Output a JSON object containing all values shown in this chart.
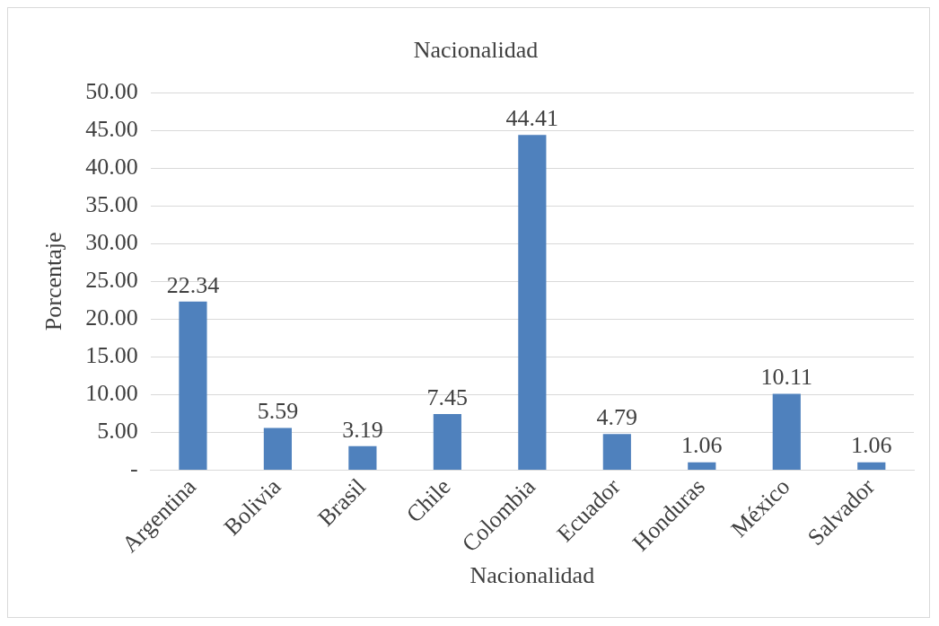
{
  "chart_data": {
    "type": "bar",
    "title": "Nacionalidad",
    "xlabel": "Nacionalidad",
    "ylabel": "Porcentaje",
    "categories": [
      "Argentina",
      "Bolivia",
      "Brasil",
      "Chile",
      "Colombia",
      "Ecuador",
      "Honduras",
      "México",
      "Salvador"
    ],
    "values": [
      22.34,
      5.59,
      3.19,
      7.45,
      44.41,
      4.79,
      1.06,
      10.11,
      1.06
    ],
    "color": "#4f81bd",
    "ylim": [
      0,
      50
    ],
    "yticks": [
      {
        "value": 0,
        "label": "-"
      },
      {
        "value": 5,
        "label": "5.00"
      },
      {
        "value": 10,
        "label": "10.00"
      },
      {
        "value": 15,
        "label": "15.00"
      },
      {
        "value": 20,
        "label": "20.00"
      },
      {
        "value": 25,
        "label": "25.00"
      },
      {
        "value": 30,
        "label": "30.00"
      },
      {
        "value": 35,
        "label": "35.00"
      },
      {
        "value": 40,
        "label": "40.00"
      },
      {
        "value": 45,
        "label": "45.00"
      },
      {
        "value": 50,
        "label": "50.00"
      }
    ],
    "grid": "y",
    "data_labels": true,
    "legend": false
  }
}
